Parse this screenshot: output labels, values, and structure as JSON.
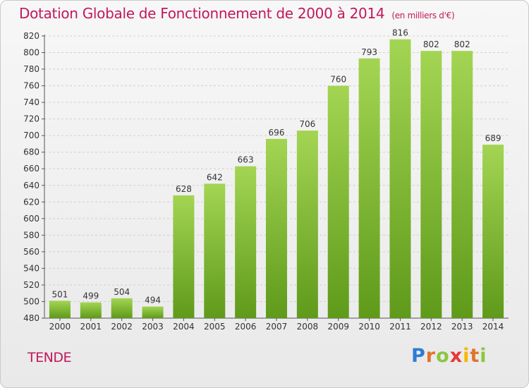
{
  "title": "Dotation Globale de Fonctionnement de 2000 à 2014",
  "unit_note": "(en milliers d'€)",
  "commune": "TENDE",
  "logo": {
    "text": "Proxiti",
    "letters": [
      "P",
      "r",
      "o",
      "x",
      "i",
      "t",
      "i"
    ]
  },
  "colors": {
    "accent": "#c2185b",
    "bar_top": "#a3d553",
    "bar_bottom": "#5f9a1a"
  },
  "chart_data": {
    "type": "bar",
    "categories": [
      "2000",
      "2001",
      "2002",
      "2003",
      "2004",
      "2005",
      "2006",
      "2007",
      "2008",
      "2009",
      "2010",
      "2011",
      "2012",
      "2013",
      "2014"
    ],
    "values": [
      501,
      499,
      504,
      494,
      628,
      642,
      663,
      696,
      706,
      760,
      793,
      816,
      802,
      802,
      689
    ],
    "ylim": [
      480,
      820
    ],
    "yticks": [
      480,
      500,
      520,
      540,
      560,
      580,
      600,
      620,
      640,
      660,
      680,
      700,
      720,
      740,
      760,
      780,
      800,
      820
    ],
    "grid": true,
    "data_labels": true
  }
}
